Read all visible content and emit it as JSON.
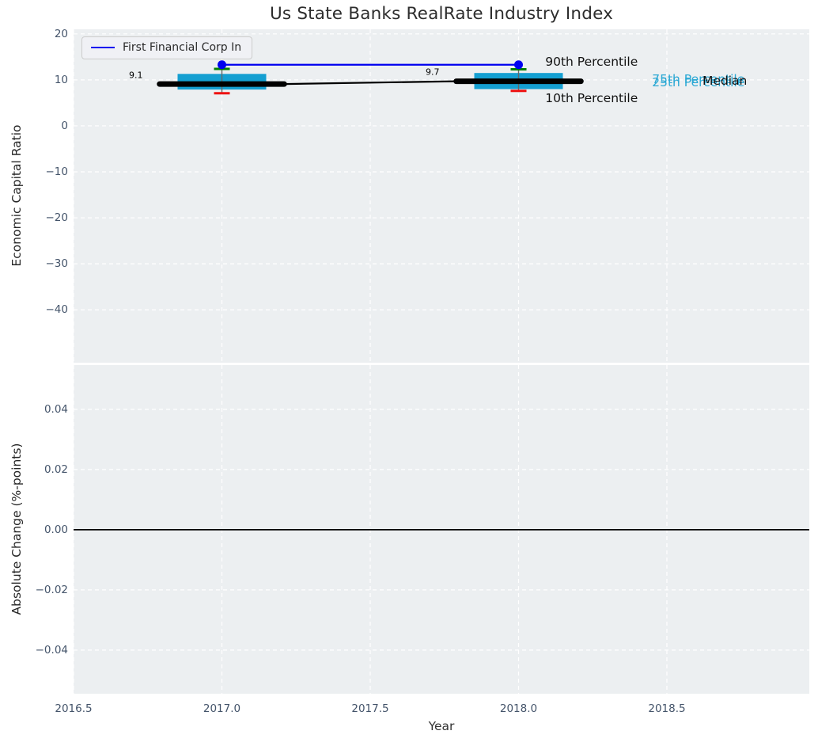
{
  "figure": {
    "title": "Us State Banks RealRate Industry Index",
    "xlabel": "Year",
    "background": "#ffffff",
    "axes_background": "#eceff1"
  },
  "legend": {
    "label": "First Financial Corp In"
  },
  "colors": {
    "company_line": "#0000f0",
    "box_fill": "#149fd1",
    "median_line": "#000000",
    "whisker": "#666666",
    "p90_cap": "#008000",
    "p10_cap": "#ee1111",
    "grid": "#ffffff",
    "zero_line": "#000000",
    "tick_label": "#44546a",
    "cyan_label": "#2ba8d4"
  },
  "chart_data": [
    {
      "type": "boxplot",
      "panel": "top",
      "title": "Us State Banks RealRate Industry Index",
      "ylabel": "Economic Capital Ratio",
      "grid": "white dashed, on",
      "legend_position": "upper left",
      "xlim": [
        2016.5,
        2018.98
      ],
      "ylim": [
        -51.5,
        21
      ],
      "yticks": {
        "values": [
          20,
          10,
          0,
          -10,
          -20,
          -30,
          -40
        ],
        "labels": [
          "20",
          "10",
          "0",
          "−10",
          "−20",
          "−30",
          "−40"
        ]
      },
      "xticks": {
        "values": [
          2016.5,
          2017.0,
          2017.5,
          2018.0,
          2018.5
        ],
        "labels": [
          "2016.5",
          "2017.0",
          "2017.5",
          "2018.0",
          "2018.5"
        ]
      },
      "boxes": [
        {
          "year": 2017,
          "p10": 7.1,
          "p25": 7.9,
          "median": 9.1,
          "p75": 11.3,
          "p90": 12.4
        },
        {
          "year": 2018,
          "p10": 7.6,
          "p25": 8.0,
          "median": 9.7,
          "p75": 11.5,
          "p90": 12.3
        }
      ],
      "median_labels": [
        "9.1",
        "9.7"
      ],
      "company_series": {
        "name": "First Financial Corp In",
        "x": [
          2017,
          2018
        ],
        "y": [
          13.3,
          13.3
        ]
      },
      "annotations": [
        {
          "text": "9.1",
          "x": 2016.71,
          "y": 11.0,
          "color": "#000000",
          "size": 11,
          "anchor": "middle"
        },
        {
          "text": "9.7",
          "x": 2017.71,
          "y": 11.7,
          "color": "#000000",
          "size": 11,
          "anchor": "middle"
        },
        {
          "text": "90th Percentile",
          "x": 2018.09,
          "y": 13.9,
          "color": "#111111",
          "size": 15.5,
          "anchor": "start"
        },
        {
          "text": "10th Percentile",
          "x": 2018.09,
          "y": 6.0,
          "color": "#111111",
          "size": 15.5,
          "anchor": "start"
        },
        {
          "text": "75th Percentile",
          "x": 2018.45,
          "y": 10.15,
          "color": "#2ba8d4",
          "size": 15.5,
          "anchor": "start"
        },
        {
          "text": "25th Percentile",
          "x": 2018.45,
          "y": 9.45,
          "color": "#2ba8d4",
          "size": 15.5,
          "anchor": "start"
        },
        {
          "text": "Median",
          "x": 2018.62,
          "y": 9.8,
          "color": "#111111",
          "size": 15.5,
          "anchor": "start"
        }
      ]
    },
    {
      "type": "line",
      "panel": "bottom",
      "ylabel": "Absolute Change (%-points)",
      "xlabel": "Year",
      "grid": "white dashed, on",
      "xlim": [
        2016.5,
        2018.98
      ],
      "ylim": [
        -0.0545,
        0.0547
      ],
      "yticks": {
        "values": [
          0.04,
          0.02,
          0,
          -0.02,
          -0.04
        ],
        "labels": [
          "0.04",
          "0.02",
          "0.00",
          "−0.02",
          "−0.04"
        ]
      },
      "xticks": {
        "values": [
          2016.5,
          2017.0,
          2017.5,
          2018.0,
          2018.5
        ],
        "labels": [
          "2016.5",
          "2017.0",
          "2017.5",
          "2018.0",
          "2018.5"
        ]
      },
      "zero_line": 0.0
    }
  ]
}
